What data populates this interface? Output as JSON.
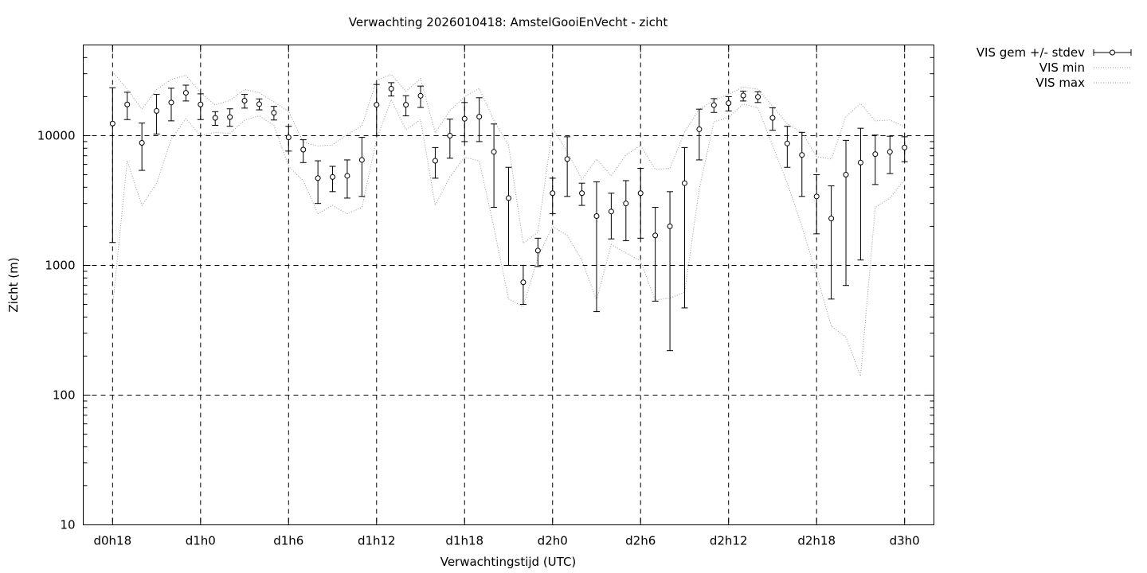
{
  "chart_data": {
    "type": "line",
    "title": "Verwachting 2026010418: AmstelGooiEnVecht - zicht",
    "xlabel": "Verwachtingstijd (UTC)",
    "ylabel": "Zicht (m)",
    "y_scale": "log",
    "ylim": [
      10,
      50000
    ],
    "y_ticks": [
      10,
      100,
      1000,
      10000
    ],
    "x_range_hours": [
      16,
      74
    ],
    "x_ticks": [
      {
        "hour": 18,
        "label": "d0h18"
      },
      {
        "hour": 24,
        "label": "d1h0"
      },
      {
        "hour": 30,
        "label": "d1h6"
      },
      {
        "hour": 36,
        "label": "d1h12"
      },
      {
        "hour": 42,
        "label": "d1h18"
      },
      {
        "hour": 48,
        "label": "d2h0"
      },
      {
        "hour": 54,
        "label": "d2h6"
      },
      {
        "hour": 60,
        "label": "d2h12"
      },
      {
        "hour": 66,
        "label": "d2h18"
      },
      {
        "hour": 72,
        "label": "d3h0"
      }
    ],
    "grid": true,
    "legend_position": "outside-top-right",
    "x_hours": [
      18,
      19,
      20,
      21,
      22,
      23,
      24,
      25,
      26,
      27,
      28,
      29,
      30,
      31,
      32,
      33,
      34,
      35,
      36,
      37,
      38,
      39,
      40,
      41,
      42,
      43,
      44,
      45,
      46,
      47,
      48,
      49,
      50,
      51,
      52,
      53,
      54,
      55,
      56,
      57,
      58,
      59,
      60,
      61,
      62,
      63,
      64,
      65,
      66,
      67,
      68,
      69,
      70,
      71,
      72
    ],
    "series": [
      {
        "name": "VIS gem +/- stdev",
        "style": "points-errorbars",
        "mean": [
          12400,
          17400,
          8800,
          15500,
          18000,
          21400,
          17400,
          13700,
          13900,
          18600,
          17500,
          15000,
          9700,
          7800,
          4700,
          4800,
          4900,
          6500,
          17300,
          23000,
          17300,
          20300,
          6400,
          10000,
          13500,
          14000,
          7500,
          3300,
          740,
          1300,
          3600,
          6600,
          3600,
          2400,
          2600,
          3000,
          3600,
          1700,
          2000,
          4300,
          11200,
          17200,
          17800,
          20400,
          19900,
          13700,
          8700,
          7100,
          3400,
          2300,
          5000,
          6200,
          7200,
          7500,
          8100
        ],
        "low": [
          1500,
          13300,
          5400,
          10300,
          13000,
          18500,
          13300,
          12000,
          11800,
          16300,
          15800,
          13200,
          7600,
          6200,
          3000,
          3700,
          3300,
          3400,
          10000,
          20200,
          14200,
          16500,
          4700,
          6700,
          9000,
          9000,
          2800,
          1000,
          500,
          980,
          2500,
          3400,
          2900,
          440,
          1600,
          1550,
          1620,
          530,
          220,
          470,
          6500,
          15100,
          15500,
          18500,
          18000,
          11000,
          5700,
          3400,
          1750,
          550,
          700,
          1100,
          4200,
          5100,
          6300
        ],
        "high": [
          23400,
          21600,
          12500,
          20800,
          23200,
          24500,
          21000,
          15300,
          16100,
          20800,
          19200,
          16800,
          11800,
          9300,
          6400,
          5800,
          6500,
          9700,
          24800,
          25600,
          20300,
          24100,
          8100,
          13400,
          18000,
          19600,
          12300,
          5700,
          1000,
          1620,
          4700,
          9800,
          4300,
          4400,
          3600,
          4500,
          5600,
          2800,
          3700,
          8100,
          16000,
          19300,
          20000,
          22000,
          21800,
          16400,
          11800,
          10600,
          5000,
          4100,
          9200,
          11400,
          10100,
          9900,
          9800
        ]
      },
      {
        "name": "VIS min",
        "style": "dotted-line",
        "values": [
          480,
          6400,
          2900,
          4300,
          9400,
          13500,
          10000,
          10600,
          10400,
          13200,
          14200,
          12000,
          5800,
          4500,
          2500,
          2900,
          2500,
          2800,
          9400,
          19000,
          11100,
          13300,
          2900,
          4800,
          6800,
          6400,
          1950,
          550,
          480,
          1150,
          2000,
          1700,
          1100,
          540,
          1450,
          1250,
          1080,
          540,
          560,
          620,
          3900,
          12800,
          13800,
          17500,
          16400,
          8400,
          4300,
          2000,
          840,
          340,
          280,
          140,
          2800,
          3300,
          4600
        ]
      },
      {
        "name": "VIS max",
        "style": "dotted-line",
        "values": [
          31000,
          22800,
          16000,
          22700,
          27100,
          29200,
          21400,
          17200,
          18700,
          22700,
          21400,
          18200,
          15400,
          8900,
          8300,
          8500,
          10200,
          11900,
          26800,
          29700,
          21900,
          27500,
          10500,
          15600,
          20000,
          23100,
          13100,
          8400,
          1480,
          1800,
          11400,
          7500,
          4600,
          6600,
          4900,
          7100,
          8400,
          5500,
          5600,
          10700,
          16000,
          18700,
          20900,
          23700,
          22800,
          16900,
          12300,
          10600,
          6900,
          6600,
          14000,
          17700,
          13000,
          13200,
          11700
        ]
      }
    ]
  }
}
